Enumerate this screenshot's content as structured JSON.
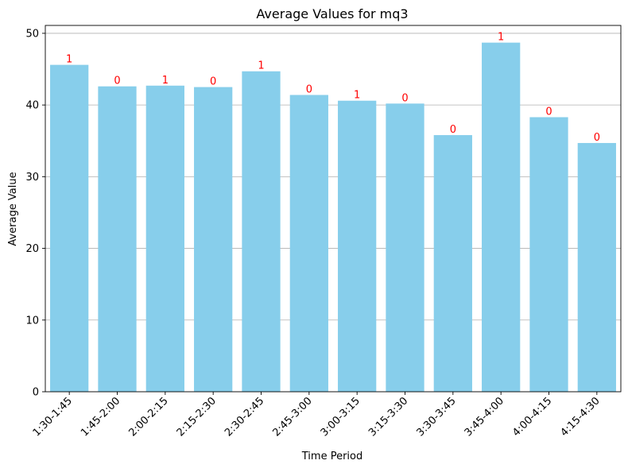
{
  "chart_data": {
    "type": "bar",
    "title": "Average Values for mq3",
    "xlabel": "Time Period",
    "ylabel": "Average Value",
    "categories": [
      "1:30-1:45",
      "1:45-2:00",
      "2:00-2:15",
      "2:15-2:30",
      "2:30-2:45",
      "2:45-3:00",
      "3:00-3:15",
      "3:15-3:30",
      "3:30-3:45",
      "3:45-4:00",
      "4:00-4:15",
      "4:15-4:30"
    ],
    "values": [
      45.6,
      42.6,
      42.7,
      42.5,
      44.7,
      41.4,
      40.6,
      40.2,
      35.8,
      48.7,
      38.3,
      34.7
    ],
    "bar_labels": [
      "1",
      "0",
      "1",
      "0",
      "1",
      "0",
      "1",
      "0",
      "0",
      "1",
      "0",
      "0"
    ],
    "ylim": [
      0,
      51.1
    ],
    "yticks": [
      0,
      10,
      20,
      30,
      40,
      50
    ],
    "grid": "y",
    "bar_color": "#87CEEB",
    "label_color": "#ff0000",
    "grid_color": "#b0b0b0"
  }
}
